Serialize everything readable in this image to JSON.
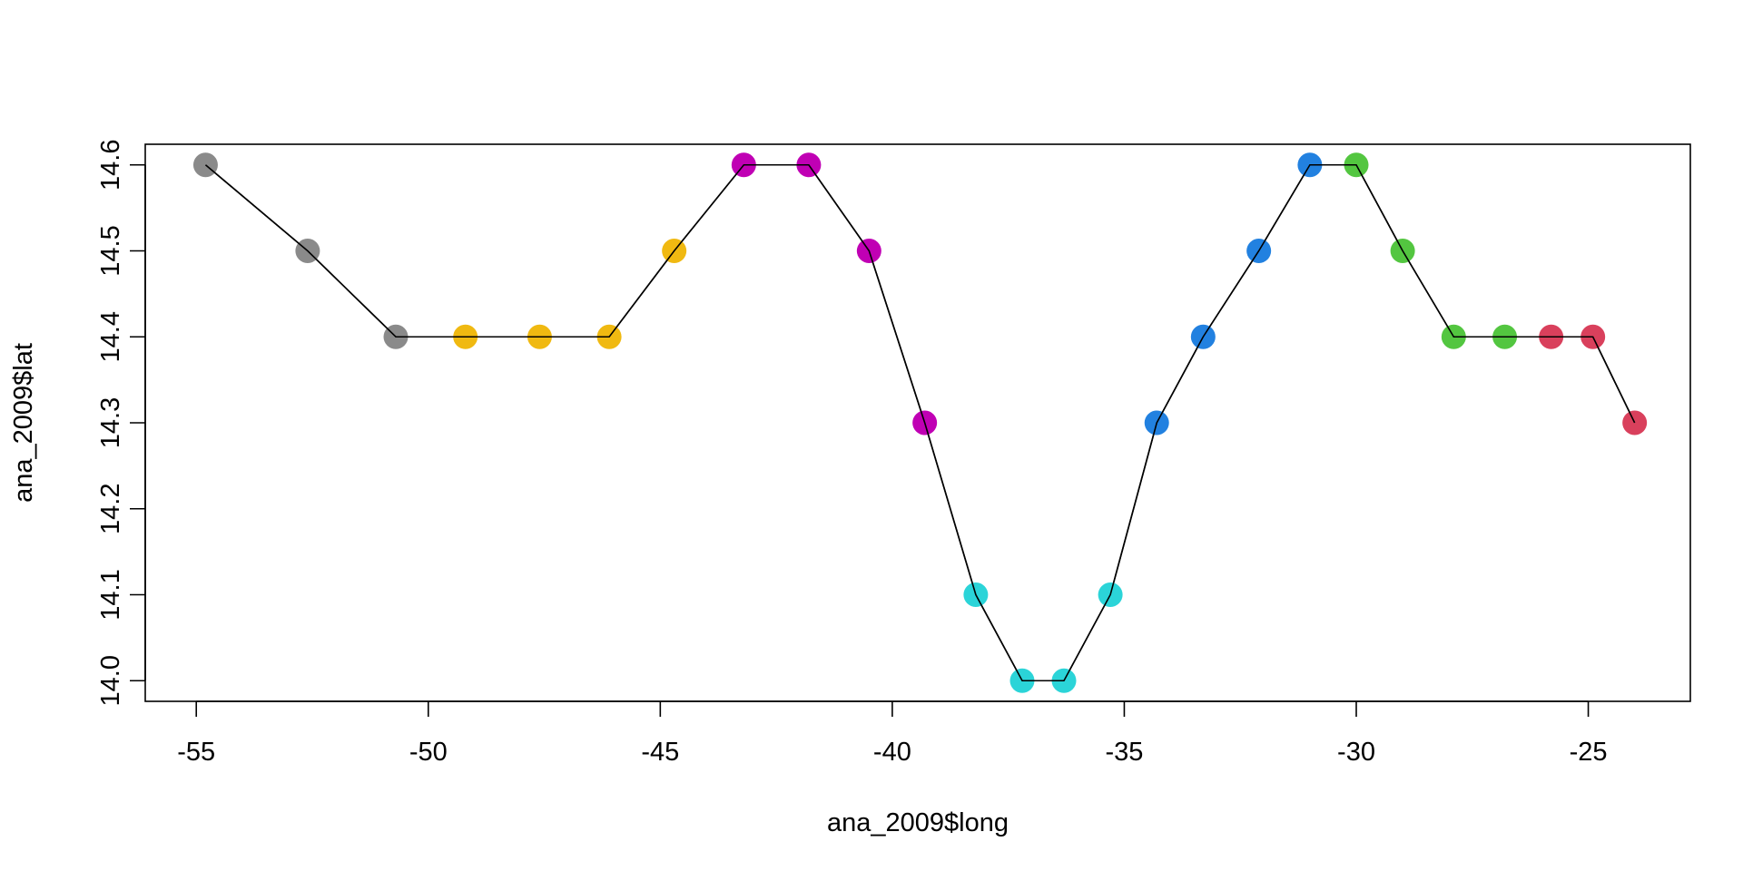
{
  "chart_data": {
    "type": "scatter",
    "title": "",
    "xlabel": "ana_2009$long",
    "ylabel": "ana_2009$lat",
    "xlim": [
      -56.1,
      -22.8
    ],
    "ylim": [
      13.976,
      14.624
    ],
    "xticks": [
      -55,
      -50,
      -45,
      -40,
      -35,
      -30,
      -25
    ],
    "yticks": [
      14.0,
      14.1,
      14.2,
      14.3,
      14.4,
      14.5,
      14.6
    ],
    "xtick_labels": [
      "-55",
      "-50",
      "-45",
      "-40",
      "-35",
      "-30",
      "-25"
    ],
    "ytick_labels": [
      "14.0",
      "14.1",
      "14.2",
      "14.3",
      "14.4",
      "14.5",
      "14.6"
    ],
    "grid": false,
    "line_color": "#000000",
    "series": [
      {
        "color": "#8a8a8a",
        "points": [
          [
            -54.8,
            14.6
          ],
          [
            -52.6,
            14.5
          ],
          [
            -50.7,
            14.4
          ]
        ]
      },
      {
        "color": "#f0b911",
        "points": [
          [
            -49.2,
            14.4
          ],
          [
            -47.6,
            14.4
          ],
          [
            -46.1,
            14.4
          ],
          [
            -44.7,
            14.5
          ]
        ]
      },
      {
        "color": "#c000b4",
        "points": [
          [
            -43.2,
            14.6
          ],
          [
            -41.8,
            14.6
          ],
          [
            -40.5,
            14.5
          ],
          [
            -39.3,
            14.3
          ]
        ]
      },
      {
        "color": "#2bd4d8",
        "points": [
          [
            -38.2,
            14.1
          ],
          [
            -37.2,
            14.0
          ],
          [
            -36.3,
            14.0
          ],
          [
            -35.3,
            14.1
          ]
        ]
      },
      {
        "color": "#2281e0",
        "points": [
          [
            -34.3,
            14.3
          ],
          [
            -33.3,
            14.4
          ],
          [
            -32.1,
            14.5
          ],
          [
            -31.0,
            14.6
          ]
        ]
      },
      {
        "color": "#53c640",
        "points": [
          [
            -30.0,
            14.6
          ],
          [
            -29.0,
            14.5
          ],
          [
            -27.9,
            14.4
          ],
          [
            -26.8,
            14.4
          ]
        ]
      },
      {
        "color": "#d9405c",
        "points": [
          [
            -25.8,
            14.4
          ],
          [
            -24.9,
            14.4
          ],
          [
            -24.0,
            14.3
          ]
        ]
      }
    ]
  }
}
